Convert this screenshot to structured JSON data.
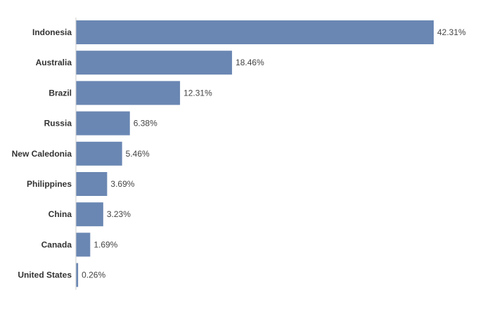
{
  "chart_data": {
    "type": "bar",
    "orientation": "horizontal",
    "categories": [
      "Indonesia",
      "Australia",
      "Brazil",
      "Russia",
      "New Caledonia",
      "Philippines",
      "China",
      "Canada",
      "United States"
    ],
    "values": [
      42.31,
      18.46,
      12.31,
      6.38,
      5.46,
      3.69,
      3.23,
      1.69,
      0.26
    ],
    "value_labels": [
      "42.31%",
      "18.46%",
      "12.31%",
      "6.38%",
      "5.46%",
      "3.69%",
      "3.23%",
      "1.69%",
      "0.26%"
    ],
    "xlim": [
      0,
      42.31
    ],
    "grid": false,
    "bar_color": "#6a87b3",
    "axis_color": "#cccccc"
  }
}
